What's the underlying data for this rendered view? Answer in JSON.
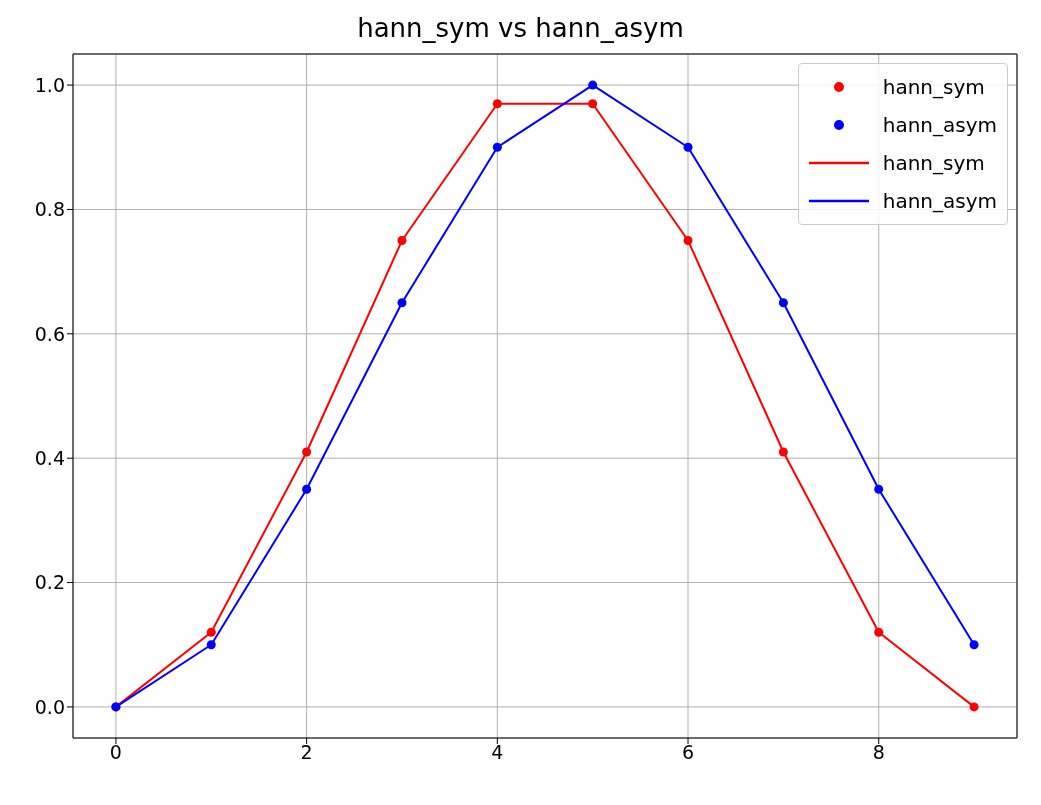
{
  "chart_data": {
    "type": "line",
    "title": "hann_sym vs hann_asym",
    "x": [
      0,
      1,
      2,
      3,
      4,
      5,
      6,
      7,
      8,
      9
    ],
    "series": [
      {
        "name": "hann_sym",
        "type": "scatter",
        "color": "#ff0000",
        "marker": "circle",
        "values": [
          0,
          0.12,
          0.41,
          0.75,
          0.97,
          0.97,
          0.75,
          0.41,
          0.12,
          0
        ]
      },
      {
        "name": "hann_asym",
        "type": "scatter",
        "color": "#0000ff",
        "marker": "circle",
        "values": [
          0,
          0.1,
          0.35,
          0.65,
          0.9,
          1.0,
          0.9,
          0.65,
          0.35,
          0.1
        ]
      },
      {
        "name": "hann_sym",
        "color": "#ff0000",
        "marker": "none",
        "line_style": "solid",
        "values": [
          0,
          0.12,
          0.41,
          0.75,
          0.97,
          0.97,
          0.75,
          0.41,
          0.12,
          0
        ]
      },
      {
        "name": "hann_asym",
        "color": "#0000ff",
        "marker": "none",
        "line_style": "solid",
        "values": [
          0,
          0.1,
          0.35,
          0.65,
          0.9,
          1.0,
          0.9,
          0.65,
          0.35,
          0.1
        ]
      }
    ],
    "xlim": [
      -0.45,
      9.45
    ],
    "xticks": [
      0,
      2,
      4,
      6,
      8
    ],
    "ylim": [
      -0.05,
      1.05
    ],
    "yticks": [
      {
        "value": 0,
        "label": "0.0"
      },
      {
        "value": 0.2,
        "label": "0.2"
      },
      {
        "value": 0.4,
        "label": "0.4"
      },
      {
        "value": 0.6,
        "label": "0.6"
      },
      {
        "value": 0.8,
        "label": "0.8"
      },
      {
        "value": 1,
        "label": "1.0"
      }
    ],
    "grid": true,
    "legend": "top right"
  }
}
